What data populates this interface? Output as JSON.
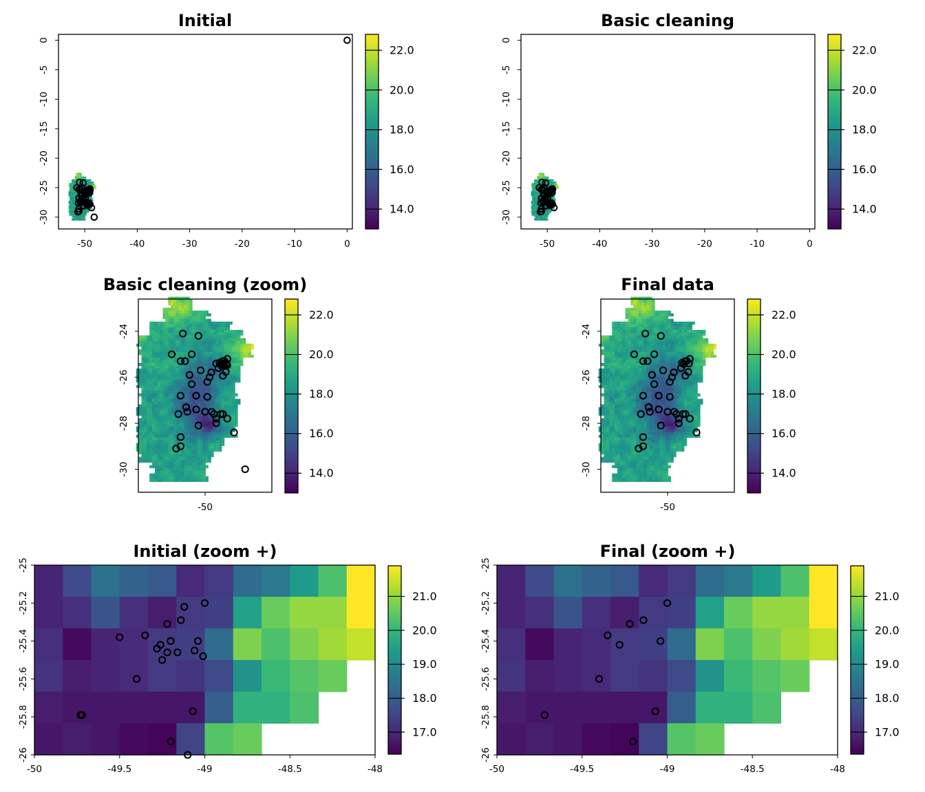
{
  "colormap": {
    "name": "viridis",
    "stops": [
      "#440154",
      "#482878",
      "#3e4989",
      "#31688e",
      "#26828e",
      "#1f9e89",
      "#35b779",
      "#6ece58",
      "#b5de2b",
      "#fde725"
    ]
  },
  "marker": {
    "shape": "open-circle",
    "color": "#000000"
  },
  "panels": [
    {
      "id": "initial",
      "title": "Initial",
      "x_ticks": [
        "-50",
        "-40",
        "-30",
        "-20",
        "-10",
        "0"
      ],
      "y_ticks": [
        "0",
        "-5",
        "-10",
        "-15",
        "-20",
        "-25",
        "-30"
      ],
      "xlim": [
        -55,
        1
      ],
      "ylim": [
        -32,
        1
      ],
      "colorbar": {
        "ticks": [
          "22.0",
          "20.0",
          "18.0",
          "16.0",
          "14.0"
        ],
        "range": [
          13,
          22.8
        ]
      }
    },
    {
      "id": "basic-cleaning",
      "title": "Basic cleaning",
      "x_ticks": [
        "-50",
        "-40",
        "-30",
        "-20",
        "-10",
        "0"
      ],
      "y_ticks": [
        "0",
        "-5",
        "-10",
        "-15",
        "-20",
        "-25",
        "-30"
      ],
      "xlim": [
        -55,
        1
      ],
      "ylim": [
        -32,
        1
      ],
      "colorbar": {
        "ticks": [
          "22.0",
          "20.0",
          "18.0",
          "16.0",
          "14.0"
        ],
        "range": [
          13,
          22.8
        ]
      }
    },
    {
      "id": "basic-cleaning-zoom",
      "title": "Basic cleaning (zoom)",
      "x_ticks": [
        "-50"
      ],
      "y_ticks": [
        "-24",
        "-26",
        "-28",
        "-30"
      ],
      "xlim": [
        -53,
        -47
      ],
      "ylim": [
        -31,
        -22.6
      ],
      "colorbar": {
        "ticks": [
          "22.0",
          "20.0",
          "18.0",
          "16.0",
          "14.0"
        ],
        "range": [
          13,
          22.8
        ]
      }
    },
    {
      "id": "final-data",
      "title": "Final data",
      "x_ticks": [
        "-50"
      ],
      "y_ticks": [
        "-24",
        "-26",
        "-28",
        "-30"
      ],
      "xlim": [
        -53,
        -47
      ],
      "ylim": [
        -31,
        -22.6
      ],
      "colorbar": {
        "ticks": [
          "22.0",
          "20.0",
          "18.0",
          "16.0",
          "14.0"
        ],
        "range": [
          13,
          22.8
        ]
      }
    },
    {
      "id": "initial-zoom-plus",
      "title": "Initial (zoom +)",
      "x_ticks": [
        "-50",
        "-49.5",
        "-49",
        "-48.5",
        "-48"
      ],
      "y_ticks": [
        "-25",
        "-25.2",
        "-25.4",
        "-25.6",
        "-25.8",
        "-26"
      ],
      "xlim": [
        -50,
        -48
      ],
      "ylim": [
        -26,
        -25
      ],
      "colorbar": {
        "ticks": [
          "21.0",
          "20.0",
          "19.0",
          "18.0",
          "17.0"
        ],
        "range": [
          16.35,
          21.9
        ]
      }
    },
    {
      "id": "final-zoom-plus",
      "title": "Final (zoom +)",
      "x_ticks": [
        "-50",
        "-49.5",
        "-49",
        "-48.5",
        "-48"
      ],
      "y_ticks": [
        "-25",
        "-25.2",
        "-25.4",
        "-25.6",
        "-25.8",
        "-26"
      ],
      "xlim": [
        -50,
        -48
      ],
      "ylim": [
        -26,
        -25
      ],
      "colorbar": {
        "ticks": [
          "21.0",
          "20.0",
          "19.0",
          "18.0",
          "17.0"
        ],
        "range": [
          16.35,
          21.9
        ]
      }
    }
  ],
  "zoom_plus_grid": {
    "x_edges": [
      -50,
      -48
    ],
    "y_edges": [
      -26,
      -25
    ],
    "values": [
      [
        16.9,
        17.6,
        18.4,
        18.1,
        17.9,
        17.0,
        17.3,
        18.3,
        18.6,
        19.4,
        20.3,
        21.9
      ],
      [
        16.9,
        17.1,
        17.8,
        17.1,
        16.8,
        17.3,
        17.4,
        19.5,
        20.6,
        21.0,
        21.0,
        21.9
      ],
      [
        17.1,
        16.5,
        16.9,
        17.0,
        17.3,
        17.4,
        18.3,
        20.8,
        20.3,
        20.8,
        21.1,
        21.4
      ],
      [
        17.2,
        16.8,
        16.9,
        17.0,
        17.3,
        17.2,
        17.6,
        19.2,
        20.1,
        20.4,
        20.6,
        null
      ],
      [
        16.8,
        16.7,
        16.7,
        16.7,
        16.7,
        16.7,
        18.0,
        19.9,
        19.9,
        20.3,
        null,
        null
      ],
      [
        16.7,
        16.8,
        16.7,
        16.5,
        16.4,
        17.5,
        20.4,
        20.6,
        null,
        null,
        null,
        null
      ]
    ]
  },
  "occurrences_zoom_plus_initial": [
    [
      -49.0,
      -25.2
    ],
    [
      -49.12,
      -25.22
    ],
    [
      -49.14,
      -25.29
    ],
    [
      -49.22,
      -25.31
    ],
    [
      -49.5,
      -25.38
    ],
    [
      -49.35,
      -25.37
    ],
    [
      -49.04,
      -25.4
    ],
    [
      -49.26,
      -25.42
    ],
    [
      -49.2,
      -25.4
    ],
    [
      -49.28,
      -25.44
    ],
    [
      -49.22,
      -25.46
    ],
    [
      -49.16,
      -25.46
    ],
    [
      -49.06,
      -25.45
    ],
    [
      -49.01,
      -25.48
    ],
    [
      -49.25,
      -25.5
    ],
    [
      -49.4,
      -25.6
    ],
    [
      -49.07,
      -25.77
    ],
    [
      -49.72,
      -25.79
    ],
    [
      -49.73,
      -25.79
    ],
    [
      -49.2,
      -25.93
    ],
    [
      -49.1,
      -26.0
    ]
  ],
  "occurrences_zoom_plus_final": [
    [
      -49.0,
      -25.2
    ],
    [
      -49.14,
      -25.29
    ],
    [
      -49.22,
      -25.31
    ],
    [
      -49.35,
      -25.37
    ],
    [
      -49.04,
      -25.4
    ],
    [
      -49.28,
      -25.42
    ],
    [
      -49.4,
      -25.6
    ],
    [
      -49.07,
      -25.77
    ],
    [
      -49.72,
      -25.79
    ],
    [
      -49.2,
      -25.93
    ]
  ],
  "occurrences_region_initial": [
    [
      -51.0,
      -24.1
    ],
    [
      -50.3,
      -24.2
    ],
    [
      -51.5,
      -25.0
    ],
    [
      -51.1,
      -25.3
    ],
    [
      -50.9,
      -25.3
    ],
    [
      -50.6,
      -25.0
    ],
    [
      -50.2,
      -25.7
    ],
    [
      -50.7,
      -25.9
    ],
    [
      -50.6,
      -26.3
    ],
    [
      -49.9,
      -26.2
    ],
    [
      -50.4,
      -26.8
    ],
    [
      -49.8,
      -26.0
    ],
    [
      -49.0,
      -25.2
    ],
    [
      -49.14,
      -25.29
    ],
    [
      -49.22,
      -25.31
    ],
    [
      -49.35,
      -25.37
    ],
    [
      -49.04,
      -25.4
    ],
    [
      -49.28,
      -25.42
    ],
    [
      -49.2,
      -25.4
    ],
    [
      -49.26,
      -25.5
    ],
    [
      -49.16,
      -25.46
    ],
    [
      -49.06,
      -25.45
    ],
    [
      -49.4,
      -25.6
    ],
    [
      -49.07,
      -25.77
    ],
    [
      -49.72,
      -25.79
    ],
    [
      -49.2,
      -25.93
    ],
    [
      -49.5,
      -25.4
    ],
    [
      -49.01,
      -25.48
    ],
    [
      -51.1,
      -26.8
    ],
    [
      -51.2,
      -27.6
    ],
    [
      -50.8,
      -27.5
    ],
    [
      -50.85,
      -27.3
    ],
    [
      -50.4,
      -27.4
    ],
    [
      -50.0,
      -27.5
    ],
    [
      -49.6,
      -27.6
    ],
    [
      -49.7,
      -27.5
    ],
    [
      -49.5,
      -27.8
    ],
    [
      -49.2,
      -27.6
    ],
    [
      -49.3,
      -27.6
    ],
    [
      -49.0,
      -27.8
    ],
    [
      -49.5,
      -28.0
    ],
    [
      -50.3,
      -28.1
    ],
    [
      -51.1,
      -28.6
    ],
    [
      -51.3,
      -29.1
    ],
    [
      -51.1,
      -29.0
    ],
    [
      -48.7,
      -28.4
    ],
    [
      -49.9,
      -26.85
    ],
    [
      -48.2,
      -30.0
    ]
  ],
  "occurrences_region_final": [
    [
      -51.0,
      -24.1
    ],
    [
      -50.3,
      -24.2
    ],
    [
      -51.5,
      -25.0
    ],
    [
      -51.1,
      -25.3
    ],
    [
      -50.9,
      -25.3
    ],
    [
      -50.6,
      -25.0
    ],
    [
      -50.2,
      -25.7
    ],
    [
      -50.7,
      -25.9
    ],
    [
      -50.6,
      -26.3
    ],
    [
      -49.9,
      -26.2
    ],
    [
      -50.4,
      -26.8
    ],
    [
      -49.8,
      -26.0
    ],
    [
      -49.0,
      -25.2
    ],
    [
      -49.14,
      -25.29
    ],
    [
      -49.22,
      -25.31
    ],
    [
      -49.35,
      -25.37
    ],
    [
      -49.04,
      -25.4
    ],
    [
      -49.28,
      -25.42
    ],
    [
      -49.4,
      -25.6
    ],
    [
      -49.07,
      -25.77
    ],
    [
      -49.72,
      -25.79
    ],
    [
      -49.2,
      -25.93
    ],
    [
      -51.1,
      -26.8
    ],
    [
      -51.2,
      -27.6
    ],
    [
      -50.8,
      -27.5
    ],
    [
      -50.85,
      -27.3
    ],
    [
      -50.4,
      -27.4
    ],
    [
      -50.0,
      -27.5
    ],
    [
      -49.6,
      -27.6
    ],
    [
      -49.7,
      -27.5
    ],
    [
      -49.5,
      -27.8
    ],
    [
      -49.2,
      -27.6
    ],
    [
      -49.3,
      -27.6
    ],
    [
      -49.0,
      -27.8
    ],
    [
      -49.5,
      -28.0
    ],
    [
      -50.3,
      -28.1
    ],
    [
      -51.1,
      -28.6
    ],
    [
      -51.3,
      -29.1
    ],
    [
      -51.1,
      -29.0
    ],
    [
      -48.7,
      -28.4
    ],
    [
      -49.9,
      -26.85
    ]
  ],
  "outlier_point_initial": [
    0,
    0
  ]
}
